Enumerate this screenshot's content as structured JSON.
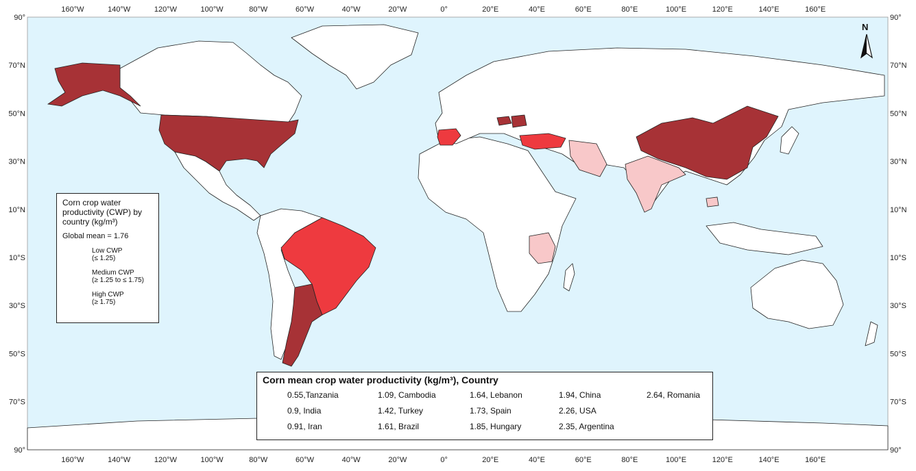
{
  "axes": {
    "longitude_ticks": [
      "160°W",
      "140°W",
      "120°W",
      "100°W",
      "80°W",
      "60°W",
      "40°W",
      "20°W",
      "0°",
      "20°E",
      "40°E",
      "60°E",
      "80°E",
      "100°E",
      "120°E",
      "140°E",
      "160°E"
    ],
    "latitude_left": [
      "90°",
      "70°N",
      "50°N",
      "30°N",
      "10°N",
      "10°S",
      "30°S",
      "50°S",
      "70°S",
      "90°"
    ],
    "latitude_right": [
      "90°",
      "70°N",
      "50°N",
      "30°N",
      "10°N",
      "10°S",
      "30°S",
      "50°S",
      "70°S",
      "90°"
    ]
  },
  "north_arrow": {
    "label": "N",
    "icon": "north-arrow-icon"
  },
  "colors": {
    "ocean": "#dff4fd",
    "low": "#f8c8c9",
    "medium": "#ee3a3f",
    "high": "#a73236",
    "land": "#ffffff"
  },
  "legend": {
    "title": "Corn crop water productivity (CWP) by country (kg/m³)",
    "global_mean": "Global mean = 1.76",
    "classes": [
      {
        "key": "low",
        "line1": "Low CWP",
        "line2": "(≤ 1.25)"
      },
      {
        "key": "med",
        "line1": "Medium CWP",
        "line2": "(≥ 1.25 to  ≤ 1.75)"
      },
      {
        "key": "high",
        "line1": "High CWP",
        "line2": "(≥ 1.75)"
      }
    ]
  },
  "table": {
    "title": "Corn mean crop water productivity (kg/m³), Country",
    "entries": [
      {
        "label": "0.55,Tanzania",
        "value": 0.55,
        "class": "low"
      },
      {
        "label": "0.9, India",
        "value": 0.9,
        "class": "low"
      },
      {
        "label": "0.91, Iran",
        "value": 0.91,
        "class": "low"
      },
      {
        "label": "1.09, Cambodia",
        "value": 1.09,
        "class": "low"
      },
      {
        "label": "1.42, Turkey",
        "value": 1.42,
        "class": "med"
      },
      {
        "label": "1.61, Brazil",
        "value": 1.61,
        "class": "med"
      },
      {
        "label": "1.64, Lebanon",
        "value": 1.64,
        "class": "med"
      },
      {
        "label": "1.73, Spain",
        "value": 1.73,
        "class": "med"
      },
      {
        "label": "1.85, Hungary",
        "value": 1.85,
        "class": "high"
      },
      {
        "label": "1.94, China",
        "value": 1.94,
        "class": "high"
      },
      {
        "label": "2.26, USA",
        "value": 2.26,
        "class": "high"
      },
      {
        "label": "2.35, Argentina",
        "value": 2.35,
        "class": "high"
      },
      {
        "label": "2.64, Romania",
        "value": 2.64,
        "class": "high"
      }
    ]
  }
}
